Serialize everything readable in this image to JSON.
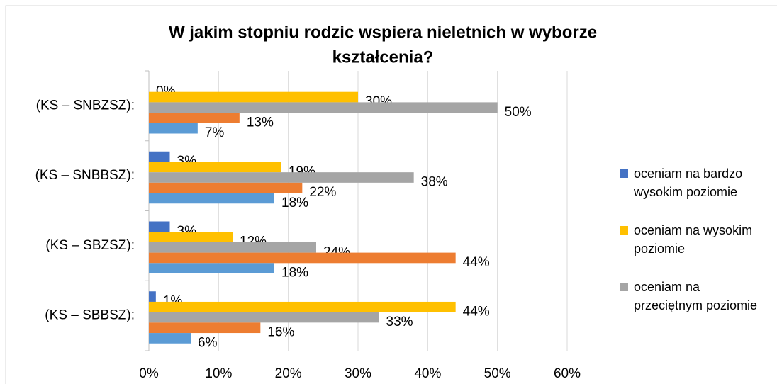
{
  "chart_data": {
    "type": "bar",
    "orientation": "horizontal",
    "title": [
      "W jakim stopniu rodzic wspiera nieletnich w wyborze",
      "kształcenia?"
    ],
    "categories": [
      "(KS – SNBZSZ):",
      "(KS – SNBBSZ):",
      "(KS – SBZSZ):",
      "(KS – SBBSZ):"
    ],
    "series": [
      {
        "name": "oceniam na bardzo wysokim poziomie",
        "color": "#4472c4",
        "values": [
          0,
          3,
          3,
          1
        ],
        "value_labels": [
          "0%",
          "3%",
          "3%",
          "1%"
        ]
      },
      {
        "name": "oceniam na wysokim poziomie",
        "color": "#ffc000",
        "values": [
          30,
          19,
          12,
          44
        ],
        "value_labels": [
          "30%",
          "19%",
          "12%",
          "44%"
        ]
      },
      {
        "name": "oceniam na przeciętnym poziomie",
        "color": "#a5a5a5",
        "values": [
          50,
          38,
          24,
          33
        ],
        "value_labels": [
          "50%",
          "38%",
          "24%",
          "33%"
        ]
      },
      {
        "color": "#ed7d31",
        "values": [
          13,
          22,
          44,
          16
        ],
        "value_labels": [
          "13%",
          "22%",
          "44%",
          "16%"
        ]
      },
      {
        "color": "#5b9bd5",
        "values": [
          7,
          18,
          18,
          6
        ],
        "value_labels": [
          "7%",
          "18%",
          "18%",
          "6%"
        ]
      }
    ],
    "xlim": [
      0,
      60
    ],
    "xticks": [
      {
        "value": 0,
        "label": "0%"
      },
      {
        "value": 10,
        "label": "10%"
      },
      {
        "value": 20,
        "label": "20%"
      },
      {
        "value": 30,
        "label": "30%"
      },
      {
        "value": 40,
        "label": "40%"
      },
      {
        "value": 50,
        "label": "50%"
      },
      {
        "value": 60,
        "label": "60%"
      }
    ],
    "grid": true,
    "legend": "right"
  }
}
